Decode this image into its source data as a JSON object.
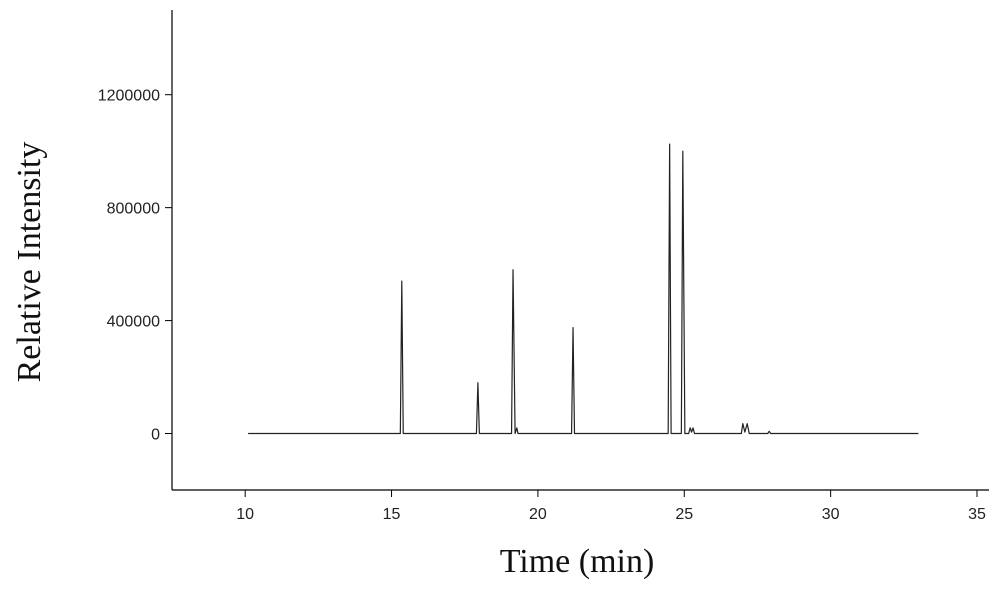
{
  "chart_data": {
    "type": "line",
    "x_label": "Time (min)",
    "y_label": "Relative Intensity",
    "xlim": [
      7.5,
      35
    ],
    "ylim": [
      -200000,
      1500000
    ],
    "xticks": [
      10,
      15,
      20,
      25,
      30,
      35
    ],
    "yticks": [
      0,
      400000,
      800000,
      1200000
    ],
    "series": [
      {
        "color": "#222222",
        "x": [
          10.1,
          15.3,
          15.35,
          15.4,
          17.9,
          17.95,
          18.0,
          19.1,
          19.15,
          19.22,
          19.28,
          19.32,
          21.15,
          21.2,
          21.25,
          24.45,
          24.5,
          24.55,
          24.9,
          24.95,
          25.02,
          25.15,
          25.2,
          25.25,
          25.3,
          25.35,
          26.95,
          27.0,
          27.07,
          27.15,
          27.22,
          27.85,
          27.9,
          27.95,
          33
        ],
        "values": [
          0,
          0,
          540000,
          0,
          0,
          180000,
          0,
          0,
          580000,
          0,
          20000,
          0,
          0,
          375000,
          0,
          0,
          1025000,
          0,
          0,
          1000000,
          0,
          0,
          20000,
          5000,
          20000,
          0,
          0,
          35000,
          5000,
          35000,
          0,
          0,
          8000,
          0,
          0
        ]
      }
    ]
  }
}
